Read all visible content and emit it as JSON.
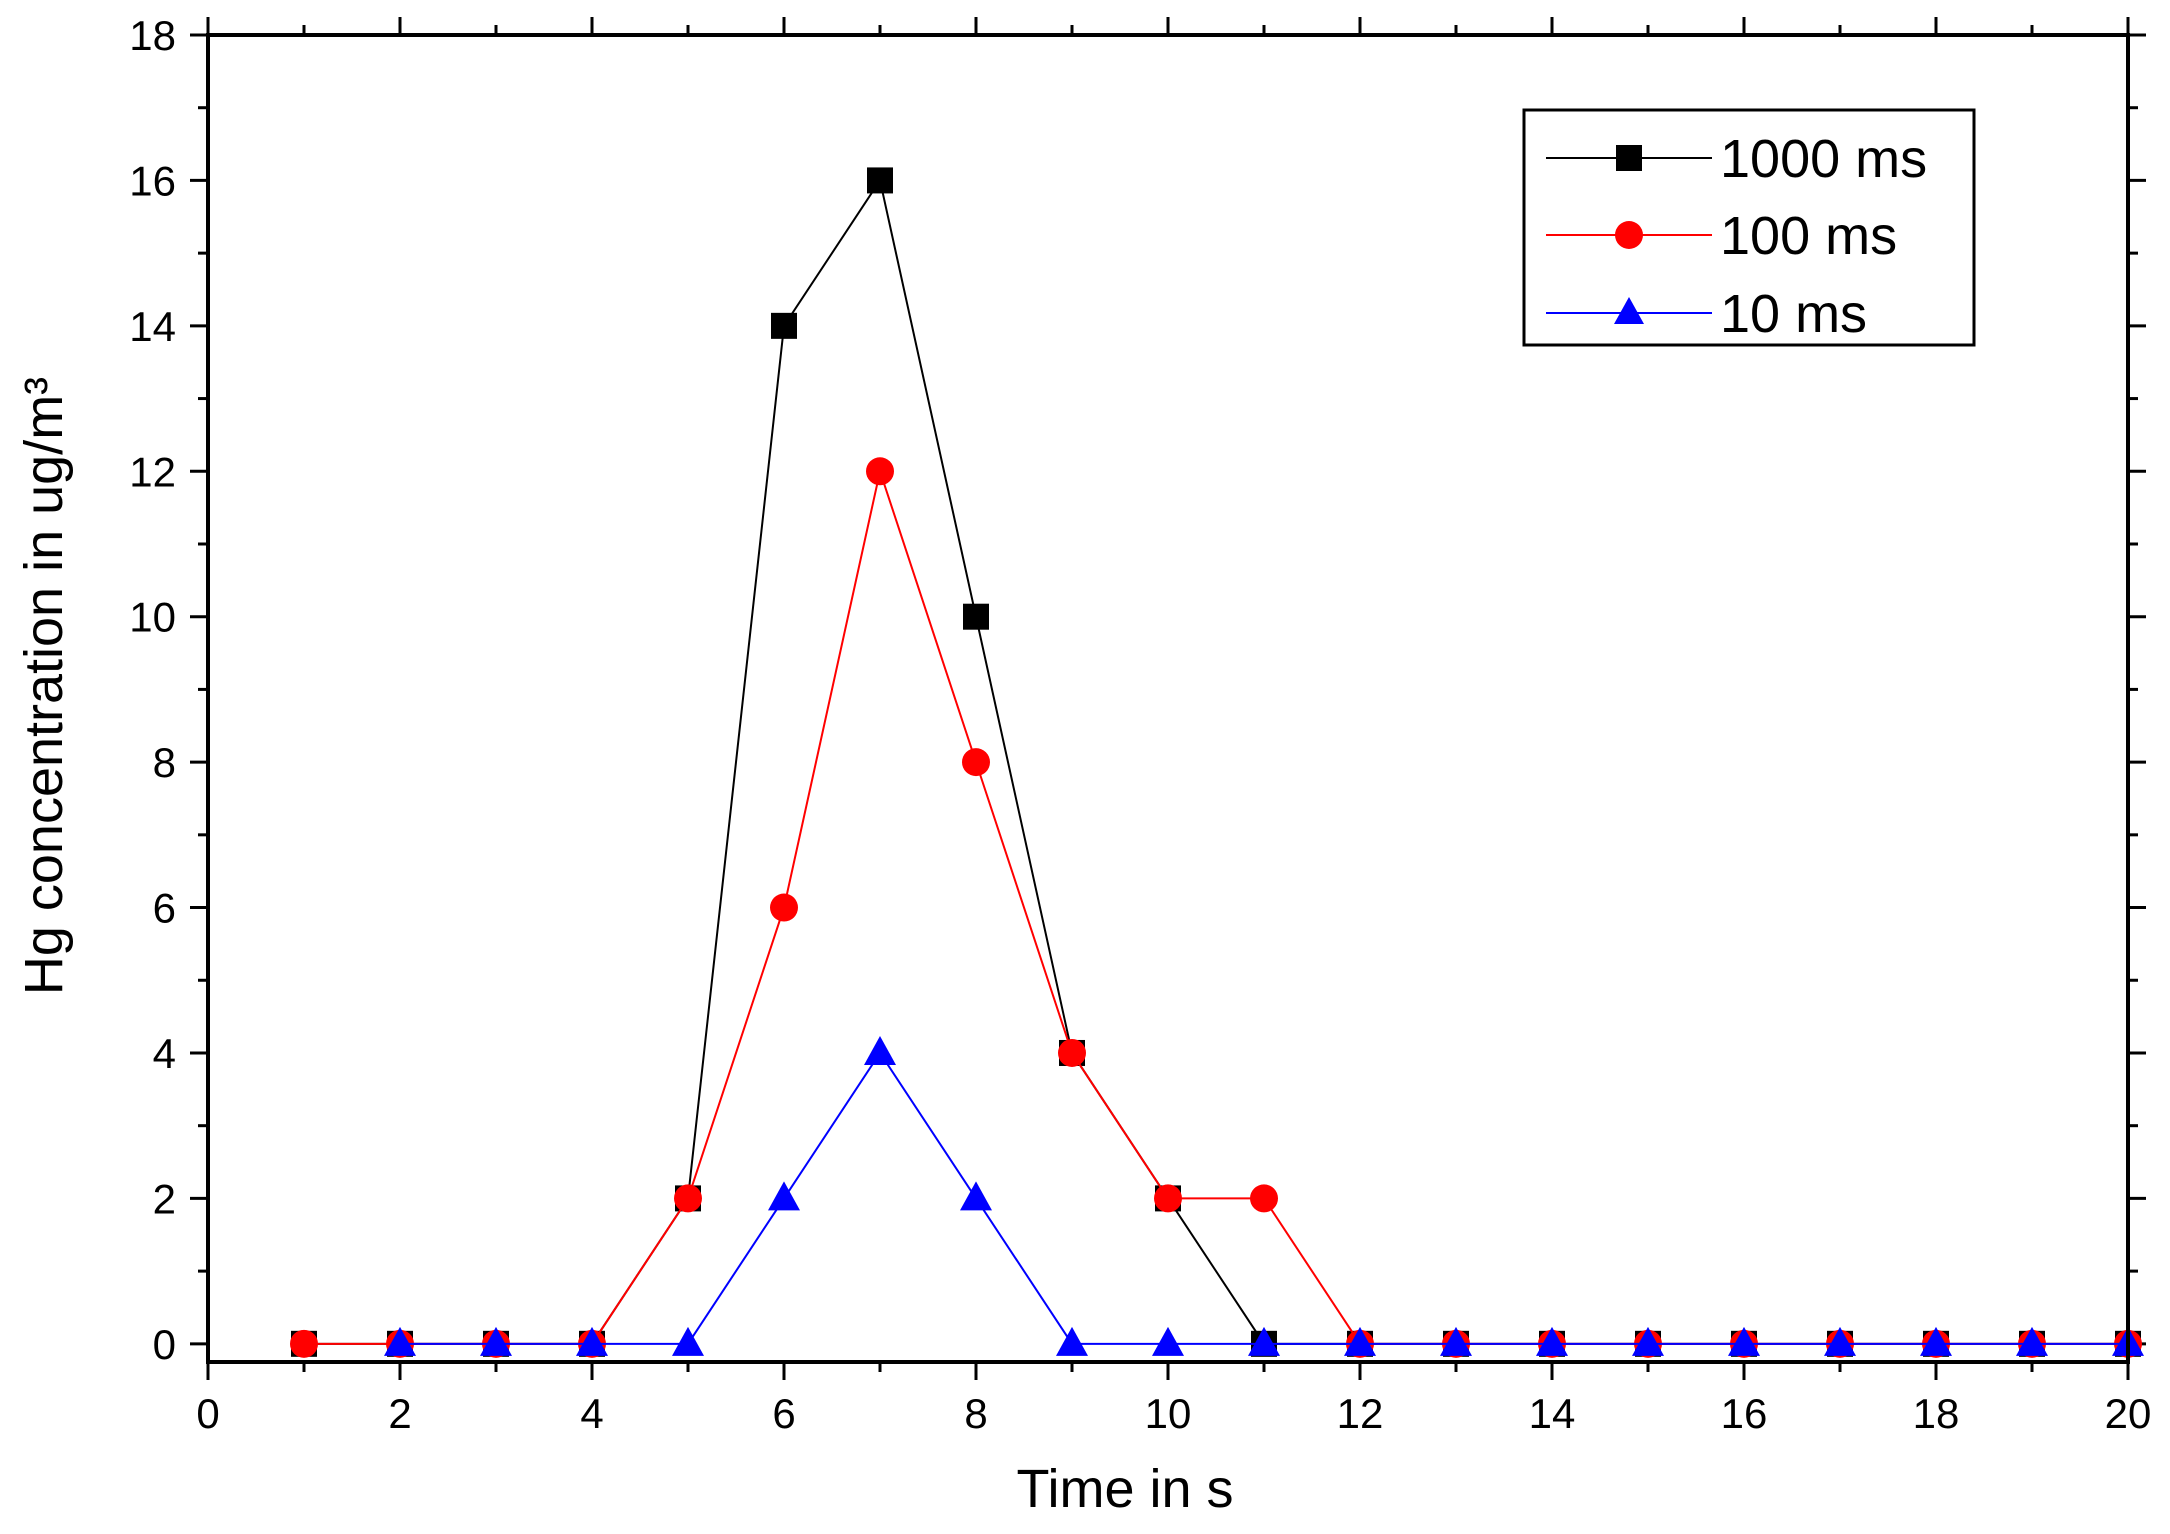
{
  "chart_data": {
    "type": "line",
    "title": "",
    "xlabel": "Time in s",
    "ylabel": "Hg concentration in ug/m³",
    "xlim": [
      0,
      20
    ],
    "ylim": [
      -0.25,
      18
    ],
    "x_ticks": [
      0,
      2,
      4,
      6,
      8,
      10,
      12,
      14,
      16,
      18,
      20
    ],
    "y_ticks": [
      0,
      2,
      4,
      6,
      8,
      10,
      12,
      14,
      16,
      18
    ],
    "x_tick_labels": [
      "0",
      "2",
      "4",
      "6",
      "8",
      "10",
      "12",
      "14",
      "16",
      "18",
      "20"
    ],
    "y_tick_labels": [
      "0",
      "2",
      "4",
      "6",
      "8",
      "10",
      "12",
      "14",
      "16",
      "18"
    ],
    "grid": false,
    "legend_position": "top-right",
    "x": [
      1,
      2,
      3,
      4,
      5,
      6,
      7,
      8,
      9,
      10,
      11,
      12,
      13,
      14,
      15,
      16,
      17,
      18,
      19,
      20
    ],
    "series": [
      {
        "name": "1000 ms",
        "color": "#000000",
        "marker": "square",
        "values": [
          0,
          0,
          0,
          0,
          2,
          14,
          16,
          10,
          4,
          2,
          0,
          0,
          0,
          0,
          0,
          0,
          0,
          0,
          0,
          0
        ]
      },
      {
        "name": "100 ms",
        "color": "#ff0000",
        "marker": "circle",
        "values": [
          0,
          0,
          0,
          0,
          2,
          6,
          12,
          8,
          4,
          2,
          2,
          0,
          0,
          0,
          0,
          0,
          0,
          0,
          0,
          0
        ]
      },
      {
        "name": "10 ms",
        "color": "#0000ff",
        "marker": "triangle",
        "values": [
          null,
          0,
          0,
          0,
          0,
          2,
          4,
          2,
          0,
          0,
          0,
          0,
          0,
          0,
          0,
          0,
          0,
          0,
          0,
          0
        ]
      }
    ]
  }
}
